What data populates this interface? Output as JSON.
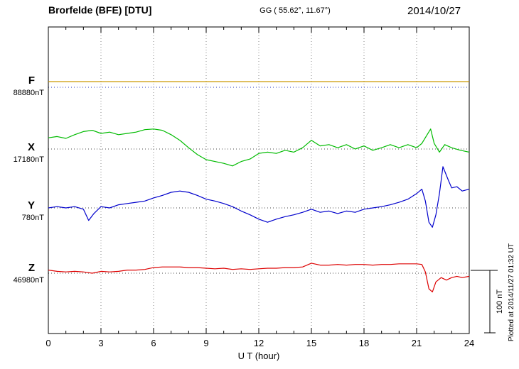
{
  "header": {
    "station": "Brorfelde (BFE)  [DTU]",
    "coords": "GG ( 55.62°, 11.67°)",
    "date": "2014/10/27"
  },
  "axis": {
    "xlabel": "U T (hour)",
    "x_ticks": [
      0,
      3,
      6,
      9,
      12,
      15,
      18,
      21,
      24
    ]
  },
  "scale_bar": {
    "label": "100 nT",
    "nT": 100
  },
  "footnote": "Plotted at 2014/11/27 01:32 UT",
  "chart_data": {
    "type": "line",
    "title": "Brorfelde (BFE) [DTU] magnetogram 2014/10/27",
    "xlabel": "U T (hour)",
    "x_range": [
      0,
      24
    ],
    "x_unit": "hour",
    "y_unit": "nT (offset from component baseline)",
    "grid": "dotted vertical every 3 hours, dotted horizontal at component baselines",
    "legend_position": "left margin component labels",
    "scale_bar_nT": 100,
    "series": [
      {
        "name": "F",
        "baseline_value": "88880nT",
        "color": "#cc9900",
        "points": [
          [
            0,
            0
          ],
          [
            24,
            0
          ]
        ]
      },
      {
        "name": "X",
        "baseline_value": "17180nT",
        "color": "#00bb00",
        "points": [
          [
            0,
            18
          ],
          [
            0.5,
            20
          ],
          [
            1,
            17
          ],
          [
            1.5,
            23
          ],
          [
            2,
            28
          ],
          [
            2.5,
            30
          ],
          [
            3,
            25
          ],
          [
            3.5,
            27
          ],
          [
            4,
            23
          ],
          [
            4.5,
            25
          ],
          [
            5,
            27
          ],
          [
            5.5,
            31
          ],
          [
            6,
            32
          ],
          [
            6.5,
            30
          ],
          [
            7,
            23
          ],
          [
            7.5,
            14
          ],
          [
            8,
            2
          ],
          [
            8.5,
            -9
          ],
          [
            9,
            -17
          ],
          [
            9.5,
            -20
          ],
          [
            10,
            -23
          ],
          [
            10.5,
            -27
          ],
          [
            11,
            -20
          ],
          [
            11.5,
            -16
          ],
          [
            12,
            -7
          ],
          [
            12.5,
            -5
          ],
          [
            13,
            -7
          ],
          [
            13.5,
            -2
          ],
          [
            14,
            -5
          ],
          [
            14.5,
            2
          ],
          [
            15,
            14
          ],
          [
            15.5,
            5
          ],
          [
            16,
            7
          ],
          [
            16.5,
            2
          ],
          [
            17,
            7
          ],
          [
            17.5,
            0
          ],
          [
            18,
            5
          ],
          [
            18.5,
            -2
          ],
          [
            19,
            2
          ],
          [
            19.5,
            7
          ],
          [
            20,
            2
          ],
          [
            20.5,
            7
          ],
          [
            21,
            2
          ],
          [
            21.3,
            9
          ],
          [
            21.6,
            23
          ],
          [
            21.8,
            32
          ],
          [
            22,
            9
          ],
          [
            22.3,
            -5
          ],
          [
            22.6,
            7
          ],
          [
            23,
            2
          ],
          [
            23.5,
            -2
          ],
          [
            24,
            -5
          ]
        ]
      },
      {
        "name": "Y",
        "baseline_value": "780nT",
        "color": "#0000cc",
        "points": [
          [
            0,
            0
          ],
          [
            0.5,
            2
          ],
          [
            1,
            0
          ],
          [
            1.5,
            2
          ],
          [
            2,
            -2
          ],
          [
            2.3,
            -20
          ],
          [
            2.6,
            -9
          ],
          [
            3,
            2
          ],
          [
            3.5,
            0
          ],
          [
            4,
            5
          ],
          [
            4.5,
            7
          ],
          [
            5,
            9
          ],
          [
            5.5,
            11
          ],
          [
            6,
            16
          ],
          [
            6.5,
            20
          ],
          [
            7,
            25
          ],
          [
            7.5,
            27
          ],
          [
            8,
            25
          ],
          [
            8.5,
            20
          ],
          [
            9,
            14
          ],
          [
            9.5,
            11
          ],
          [
            10,
            7
          ],
          [
            10.5,
            2
          ],
          [
            11,
            -5
          ],
          [
            11.5,
            -11
          ],
          [
            12,
            -18
          ],
          [
            12.5,
            -23
          ],
          [
            13,
            -18
          ],
          [
            13.5,
            -14
          ],
          [
            14,
            -11
          ],
          [
            14.5,
            -7
          ],
          [
            15,
            -2
          ],
          [
            15.5,
            -7
          ],
          [
            16,
            -5
          ],
          [
            16.5,
            -9
          ],
          [
            17,
            -5
          ],
          [
            17.5,
            -7
          ],
          [
            18,
            -2
          ],
          [
            18.5,
            0
          ],
          [
            19,
            2
          ],
          [
            19.5,
            5
          ],
          [
            20,
            9
          ],
          [
            20.5,
            14
          ],
          [
            21,
            23
          ],
          [
            21.3,
            30
          ],
          [
            21.5,
            11
          ],
          [
            21.7,
            -23
          ],
          [
            21.9,
            -31
          ],
          [
            22.1,
            -11
          ],
          [
            22.3,
            23
          ],
          [
            22.5,
            66
          ],
          [
            22.8,
            45
          ],
          [
            23,
            32
          ],
          [
            23.3,
            34
          ],
          [
            23.6,
            27
          ],
          [
            24,
            30
          ]
        ]
      },
      {
        "name": "Z",
        "baseline_value": "46980nT",
        "color": "#dd0000",
        "points": [
          [
            0,
            5
          ],
          [
            0.5,
            3
          ],
          [
            1,
            2
          ],
          [
            1.5,
            3
          ],
          [
            2,
            2
          ],
          [
            2.5,
            0
          ],
          [
            3,
            3
          ],
          [
            3.5,
            2
          ],
          [
            4,
            3
          ],
          [
            4.5,
            5
          ],
          [
            5,
            5
          ],
          [
            5.5,
            6
          ],
          [
            6,
            9
          ],
          [
            6.5,
            10
          ],
          [
            7,
            10
          ],
          [
            7.5,
            10
          ],
          [
            8,
            9
          ],
          [
            8.5,
            9
          ],
          [
            9,
            8
          ],
          [
            9.5,
            7
          ],
          [
            10,
            8
          ],
          [
            10.5,
            6
          ],
          [
            11,
            7
          ],
          [
            11.5,
            6
          ],
          [
            12,
            7
          ],
          [
            12.5,
            8
          ],
          [
            13,
            8
          ],
          [
            13.5,
            9
          ],
          [
            14,
            9
          ],
          [
            14.5,
            10
          ],
          [
            15,
            16
          ],
          [
            15.5,
            13
          ],
          [
            16,
            13
          ],
          [
            16.5,
            14
          ],
          [
            17,
            13
          ],
          [
            17.5,
            14
          ],
          [
            18,
            14
          ],
          [
            18.5,
            13
          ],
          [
            19,
            14
          ],
          [
            19.5,
            14
          ],
          [
            20,
            15
          ],
          [
            20.5,
            15
          ],
          [
            21,
            15
          ],
          [
            21.3,
            14
          ],
          [
            21.5,
            2
          ],
          [
            21.7,
            -25
          ],
          [
            21.9,
            -30
          ],
          [
            22.1,
            -14
          ],
          [
            22.4,
            -7
          ],
          [
            22.7,
            -11
          ],
          [
            23,
            -7
          ],
          [
            23.3,
            -5
          ],
          [
            23.6,
            -7
          ],
          [
            24,
            -5
          ]
        ]
      }
    ]
  }
}
